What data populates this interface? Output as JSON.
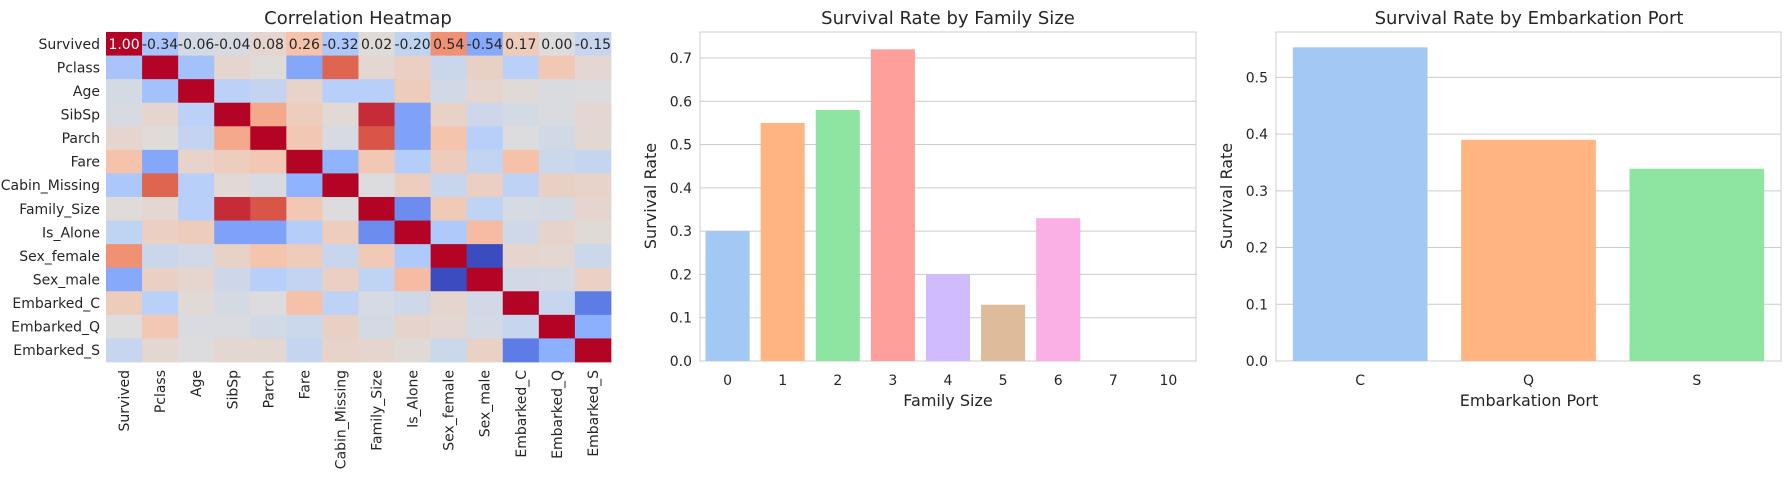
{
  "chart_data": [
    {
      "type": "heatmap",
      "title": "Correlation Heatmap",
      "variables": [
        "Survived",
        "Pclass",
        "Age",
        "SibSp",
        "Parch",
        "Fare",
        "Cabin_Missing",
        "Family_Size",
        "Is_Alone",
        "Sex_female",
        "Sex_male",
        "Embarked_C",
        "Embarked_Q",
        "Embarked_S"
      ],
      "matrix": [
        [
          1.0,
          -0.34,
          -0.06,
          -0.04,
          0.08,
          0.26,
          -0.32,
          0.02,
          -0.2,
          0.54,
          -0.54,
          0.17,
          0.0,
          -0.15
        ],
        [
          -0.34,
          1.0,
          -0.37,
          0.08,
          0.02,
          -0.55,
          0.73,
          0.07,
          0.14,
          -0.13,
          0.13,
          -0.24,
          0.22,
          0.07
        ],
        [
          -0.06,
          -0.37,
          1.0,
          -0.23,
          -0.17,
          0.1,
          -0.25,
          -0.25,
          0.17,
          -0.08,
          0.08,
          0.03,
          -0.03,
          -0.01
        ],
        [
          -0.04,
          0.08,
          -0.23,
          1.0,
          0.41,
          0.16,
          0.04,
          0.89,
          -0.58,
          0.11,
          -0.11,
          -0.06,
          -0.03,
          0.07
        ],
        [
          0.08,
          0.02,
          -0.17,
          0.41,
          1.0,
          0.22,
          -0.04,
          0.78,
          -0.58,
          0.25,
          -0.25,
          -0.01,
          -0.08,
          0.06
        ],
        [
          0.26,
          -0.55,
          0.1,
          0.16,
          0.22,
          1.0,
          -0.48,
          0.22,
          -0.27,
          0.18,
          -0.18,
          0.27,
          -0.12,
          -0.16
        ],
        [
          -0.32,
          0.73,
          -0.25,
          0.04,
          -0.04,
          -0.48,
          1.0,
          -0.01,
          0.16,
          -0.14,
          0.14,
          -0.21,
          0.13,
          0.1
        ],
        [
          0.02,
          0.07,
          -0.25,
          0.89,
          0.78,
          0.22,
          -0.01,
          1.0,
          -0.69,
          0.2,
          -0.2,
          -0.05,
          -0.06,
          0.08
        ],
        [
          -0.2,
          0.14,
          0.17,
          -0.58,
          -0.58,
          -0.27,
          0.16,
          -0.69,
          1.0,
          -0.3,
          0.3,
          -0.1,
          0.09,
          0.03
        ],
        [
          0.54,
          -0.13,
          -0.08,
          0.11,
          0.25,
          0.18,
          -0.14,
          0.2,
          -0.3,
          1.0,
          -1.0,
          0.08,
          0.07,
          -0.12
        ],
        [
          -0.54,
          0.13,
          0.08,
          -0.11,
          -0.25,
          -0.18,
          0.14,
          -0.2,
          0.3,
          -1.0,
          1.0,
          -0.08,
          -0.07,
          0.12
        ],
        [
          0.17,
          -0.24,
          0.03,
          -0.06,
          -0.01,
          0.27,
          -0.21,
          -0.05,
          -0.1,
          0.08,
          -0.08,
          1.0,
          -0.15,
          -0.78
        ],
        [
          0.0,
          0.22,
          -0.03,
          -0.03,
          -0.08,
          -0.12,
          0.13,
          -0.06,
          0.09,
          0.07,
          -0.07,
          -0.15,
          1.0,
          -0.5
        ],
        [
          -0.15,
          0.07,
          -0.01,
          0.07,
          0.06,
          -0.16,
          0.1,
          0.08,
          0.03,
          -0.12,
          0.12,
          -0.78,
          -0.5,
          1.0
        ]
      ],
      "annotated_row": 0,
      "annotations": [
        "1.00",
        "-0.34",
        "-0.06",
        "-0.04",
        "0.08",
        "0.26",
        "-0.32",
        "0.02",
        "-0.20",
        "0.54",
        "-0.54",
        "0.17",
        "0.00",
        "-0.15"
      ],
      "colormap": "coolwarm",
      "vmin": -1,
      "vmax": 1
    },
    {
      "type": "bar",
      "title": "Survival Rate by Family Size",
      "xlabel": "Family Size",
      "ylabel": "Survival Rate",
      "categories": [
        "0",
        "1",
        "2",
        "3",
        "4",
        "5",
        "6",
        "7",
        "10"
      ],
      "values": [
        0.3,
        0.55,
        0.58,
        0.72,
        0.2,
        0.13,
        0.33,
        0.0,
        0.0
      ],
      "colors": [
        "#a1c9f4",
        "#ffb482",
        "#8de5a1",
        "#ff9f9b",
        "#d0bbff",
        "#debb9b",
        "#fab0e4",
        "#cfcfcf",
        "#fffea3"
      ],
      "ylim": [
        0,
        0.76
      ],
      "yticks": [
        0.0,
        0.1,
        0.2,
        0.3,
        0.4,
        0.5,
        0.6,
        0.7
      ],
      "ytick_labels": [
        "0.0",
        "0.1",
        "0.2",
        "0.3",
        "0.4",
        "0.5",
        "0.6",
        "0.7"
      ],
      "grid": true
    },
    {
      "type": "bar",
      "title": "Survival Rate by Embarkation Port",
      "xlabel": "Embarkation Port",
      "ylabel": "Survival Rate",
      "categories": [
        "C",
        "Q",
        "S"
      ],
      "values": [
        0.553,
        0.39,
        0.339
      ],
      "colors": [
        "#a1c9f4",
        "#ffb482",
        "#8de5a1"
      ],
      "ylim": [
        0,
        0.58
      ],
      "yticks": [
        0.0,
        0.1,
        0.2,
        0.3,
        0.4,
        0.5
      ],
      "ytick_labels": [
        "0.0",
        "0.1",
        "0.2",
        "0.3",
        "0.4",
        "0.5"
      ],
      "grid": true
    }
  ]
}
